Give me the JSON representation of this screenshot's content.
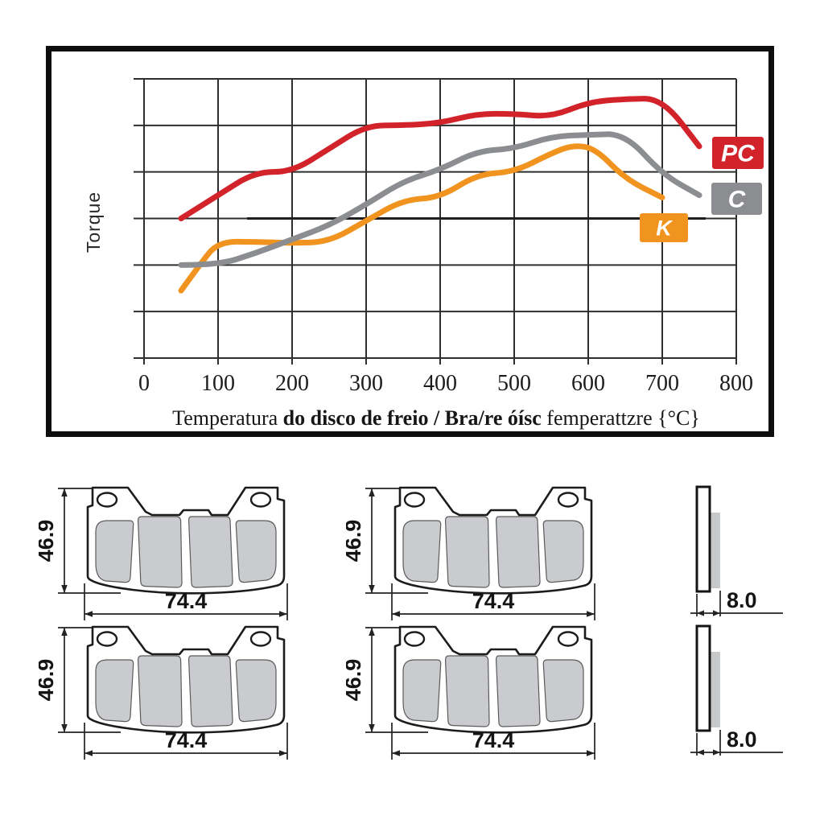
{
  "figure": {
    "ylabel": "Torque",
    "xlabel_parts": {
      "p1": "Temperatura ",
      "p2": "do disco de freio / Bra/re óísc ",
      "p3": "femperattzre {°C}"
    },
    "legend": [
      {
        "label": "PC",
        "color": "#d2232a"
      },
      {
        "label": "C",
        "color": "#8b8d90"
      },
      {
        "label": "K",
        "color": "#f0931f"
      }
    ]
  },
  "chart_data": {
    "type": "line",
    "title": "",
    "xlabel": "Temperatura do disco de freio / Bra/re óísc femperattzre {°C}",
    "ylabel": "Torque",
    "xlim": [
      0,
      800
    ],
    "ylim": [
      0,
      6
    ],
    "x_ticks": [
      0,
      100,
      200,
      300,
      400,
      500,
      600,
      700,
      800
    ],
    "y_gridlines": 7,
    "y_tick_labels": "none",
    "grid": true,
    "legend_position": "right",
    "series": [
      {
        "name": "PC",
        "color": "#d2232a",
        "x": [
          50,
          100,
          150,
          200,
          250,
          300,
          350,
          400,
          450,
          500,
          550,
          600,
          650,
          700,
          750
        ],
        "y": [
          3.0,
          3.5,
          4.0,
          4.0,
          4.5,
          5.0,
          5.0,
          5.05,
          5.25,
          5.25,
          5.18,
          5.5,
          5.57,
          5.58,
          4.55
        ]
      },
      {
        "name": "C",
        "color": "#8b8d90",
        "x": [
          50,
          100,
          150,
          200,
          250,
          300,
          350,
          400,
          450,
          500,
          550,
          600,
          650,
          700,
          750
        ],
        "y": [
          2.0,
          2.0,
          2.25,
          2.55,
          2.85,
          3.3,
          3.8,
          4.05,
          4.45,
          4.5,
          4.76,
          4.8,
          4.82,
          3.95,
          3.5
        ]
      },
      {
        "name": "K",
        "color": "#f0931f",
        "x": [
          50,
          75,
          100,
          150,
          200,
          250,
          300,
          350,
          400,
          450,
          500,
          550,
          580,
          610,
          650,
          700
        ],
        "y": [
          1.45,
          2.0,
          2.5,
          2.5,
          2.47,
          2.5,
          2.95,
          3.4,
          3.45,
          3.95,
          4.0,
          4.4,
          4.58,
          4.5,
          3.85,
          3.45
        ]
      }
    ]
  },
  "drawings": {
    "front_views": [
      {
        "height": "46.9",
        "width": "74.4"
      },
      {
        "height": "46.9",
        "width": "74.4"
      },
      {
        "height": "46.9",
        "width": "74.4"
      },
      {
        "height": "46.9",
        "width": "74.4"
      }
    ],
    "side_views": [
      {
        "thickness": "8.0"
      },
      {
        "thickness": "8.0"
      }
    ]
  }
}
